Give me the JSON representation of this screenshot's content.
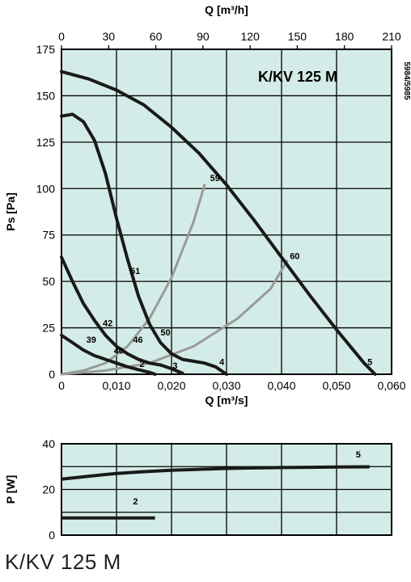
{
  "footer_title": "K/KV 125 M",
  "colors": {
    "plot_bg": "#d4ece7",
    "grid": "#000000",
    "fan_curve": "#1a1a1a",
    "system_curve": "#9a9a9a"
  },
  "chart_data": [
    {
      "type": "line",
      "title": "K/KV 125 M",
      "code": "5984/5985",
      "xlabel": "Q [m³/s]",
      "x2label": "Q [m³/h]",
      "ylabel": "Ps [Pa]",
      "xlim": [
        0,
        0.06
      ],
      "ylim": [
        0,
        175
      ],
      "x_ticks": [
        "0",
        "0,010",
        "0,020",
        "0,030",
        "0,040",
        "0,050",
        "0,060"
      ],
      "x2_ticks": [
        "0",
        "30",
        "60",
        "90",
        "120",
        "150",
        "180",
        "210"
      ],
      "y_ticks": [
        "0",
        "25",
        "50",
        "75",
        "100",
        "125",
        "150",
        "175"
      ],
      "grid": true,
      "series": [
        {
          "name": "5",
          "kind": "fan",
          "points": [
            [
              0,
              163
            ],
            [
              0.005,
              159
            ],
            [
              0.01,
              153
            ],
            [
              0.015,
              145
            ],
            [
              0.02,
              133
            ],
            [
              0.025,
              119
            ],
            [
              0.03,
              102
            ],
            [
              0.035,
              83
            ],
            [
              0.04,
              63
            ],
            [
              0.045,
              43
            ],
            [
              0.05,
              24
            ],
            [
              0.055,
              6
            ],
            [
              0.057,
              0
            ]
          ]
        },
        {
          "name": "4",
          "kind": "fan",
          "points": [
            [
              0,
              139
            ],
            [
              0.002,
              140
            ],
            [
              0.004,
              136
            ],
            [
              0.006,
              126
            ],
            [
              0.008,
              108
            ],
            [
              0.01,
              84
            ],
            [
              0.012,
              62
            ],
            [
              0.014,
              42
            ],
            [
              0.016,
              27
            ],
            [
              0.018,
              17
            ],
            [
              0.02,
              11
            ],
            [
              0.022,
              8
            ],
            [
              0.024,
              7
            ],
            [
              0.026,
              6
            ],
            [
              0.028,
              4
            ],
            [
              0.03,
              0
            ]
          ]
        },
        {
          "name": "3",
          "kind": "fan",
          "points": [
            [
              0,
              63
            ],
            [
              0.002,
              50
            ],
            [
              0.004,
              38
            ],
            [
              0.006,
              29
            ],
            [
              0.008,
              21
            ],
            [
              0.01,
              15
            ],
            [
              0.012,
              11
            ],
            [
              0.014,
              8
            ],
            [
              0.016,
              6
            ],
            [
              0.018,
              5
            ],
            [
              0.02,
              3
            ],
            [
              0.022,
              0.5
            ]
          ]
        },
        {
          "name": "2",
          "kind": "fan",
          "points": [
            [
              0,
              21
            ],
            [
              0.002,
              17
            ],
            [
              0.004,
              13
            ],
            [
              0.006,
              10
            ],
            [
              0.008,
              8
            ],
            [
              0.01,
              6
            ],
            [
              0.012,
              4
            ],
            [
              0.014,
              2.5
            ],
            [
              0.016,
              1
            ],
            [
              0.017,
              0
            ]
          ]
        },
        {
          "name": "59",
          "kind": "system",
          "points": [
            [
              0,
              0
            ],
            [
              0.004,
              2
            ],
            [
              0.008,
              6
            ],
            [
              0.012,
              15
            ],
            [
              0.016,
              30
            ],
            [
              0.02,
              52
            ],
            [
              0.024,
              82
            ],
            [
              0.026,
              102
            ]
          ]
        },
        {
          "name": "60",
          "kind": "system",
          "points": [
            [
              0,
              0
            ],
            [
              0.008,
              2
            ],
            [
              0.016,
              6
            ],
            [
              0.024,
              15
            ],
            [
              0.032,
              30
            ],
            [
              0.038,
              46
            ],
            [
              0.041,
              61
            ]
          ]
        }
      ],
      "annotations": [
        {
          "text": "59",
          "x": 0.027,
          "y": 104
        },
        {
          "text": "60",
          "x": 0.0415,
          "y": 62
        },
        {
          "text": "51",
          "x": 0.0125,
          "y": 54
        },
        {
          "text": "42",
          "x": 0.0075,
          "y": 26
        },
        {
          "text": "39",
          "x": 0.0045,
          "y": 17
        },
        {
          "text": "40",
          "x": 0.0095,
          "y": 11
        },
        {
          "text": "46",
          "x": 0.013,
          "y": 17
        },
        {
          "text": "50",
          "x": 0.018,
          "y": 21
        },
        {
          "text": "2",
          "x": 0.0142,
          "y": 4
        },
        {
          "text": "3",
          "x": 0.0202,
          "y": 3
        },
        {
          "text": "4",
          "x": 0.0287,
          "y": 5
        },
        {
          "text": "5",
          "x": 0.0556,
          "y": 5
        }
      ]
    },
    {
      "type": "line",
      "ylabel": "P [W]",
      "xlim": [
        0,
        0.06
      ],
      "ylim": [
        0,
        40
      ],
      "y_ticks": [
        "0",
        "20",
        "40"
      ],
      "grid": true,
      "series": [
        {
          "name": "5",
          "points": [
            [
              0,
              24.5
            ],
            [
              0.005,
              25.8
            ],
            [
              0.01,
              27
            ],
            [
              0.015,
              27.8
            ],
            [
              0.02,
              28.4
            ],
            [
              0.025,
              28.8
            ],
            [
              0.03,
              29.2
            ],
            [
              0.035,
              29.4
            ],
            [
              0.04,
              29.6
            ],
            [
              0.045,
              29.7
            ],
            [
              0.05,
              29.8
            ],
            [
              0.056,
              29.9
            ]
          ]
        },
        {
          "name": "2",
          "points": [
            [
              0,
              7.5
            ],
            [
              0.017,
              7.5
            ]
          ]
        }
      ],
      "annotations": [
        {
          "text": "5",
          "x": 0.0535,
          "y": 34
        },
        {
          "text": "2",
          "x": 0.013,
          "y": 13.5
        }
      ]
    }
  ]
}
